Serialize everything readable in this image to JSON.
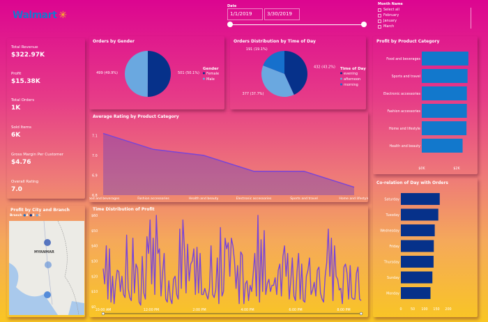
{
  "brand": {
    "name": "Walmart",
    "accent": "#1a75cf",
    "spark": "#ffc220"
  },
  "date_slicer": {
    "label": "Date",
    "start": "1/1/2019",
    "end": "3/30/2019"
  },
  "month_slicer": {
    "label": "Month Name",
    "items": [
      "Select all",
      "February",
      "January",
      "March"
    ]
  },
  "kpis": [
    {
      "label": "Total Revenue",
      "value": "$322.97K"
    },
    {
      "label": "Profit",
      "value": "$15.38K"
    },
    {
      "label": "Total Orders",
      "value": "1K"
    },
    {
      "label": "Sold Items",
      "value": "6K"
    },
    {
      "label": "Gross Margin Per Customer",
      "value": "$4.76"
    },
    {
      "label": "Overall Rating",
      "value": "7.0"
    }
  ],
  "map": {
    "title": "Profit by City and Branch",
    "legend_label": "Branch",
    "branches": [
      "A",
      "B",
      "C"
    ],
    "country_label": "MYANMAR"
  },
  "chart_data": [
    {
      "type": "pie",
      "title": "Orders by Gender",
      "legend_title": "Gender",
      "categories": [
        "Female",
        "Male"
      ],
      "values": [
        501,
        499
      ],
      "labels": [
        "501 (50.1%)",
        "499 (49.9%)"
      ],
      "colors": [
        "#06318a",
        "#6aa8e0"
      ]
    },
    {
      "type": "pie",
      "title": "Orders Distribution by Time of Day",
      "legend_title": "Time of Day",
      "categories": [
        "evening",
        "afternoon",
        "morning"
      ],
      "values": [
        432,
        377,
        191
      ],
      "labels": [
        "432 (43.2%)",
        "377 (37.7%)",
        "191 (19.1%)"
      ],
      "colors": [
        "#06318a",
        "#6aa8e0",
        "#1670cc"
      ]
    },
    {
      "type": "bar",
      "orientation": "horizontal",
      "title": "Profit by Product Category",
      "categories": [
        "Food and beverages",
        "Sports and travel",
        "Electronic accessories",
        "Fashion accessories",
        "Home and lifestyle",
        "Health and beauty"
      ],
      "values": [
        2673.56,
        2624.9,
        2587.5,
        2585.99,
        2564.85,
        2342.56
      ],
      "xticks": [
        "$0K",
        "$2K"
      ],
      "xlim": [
        0,
        2800
      ],
      "color": "#1278cc"
    },
    {
      "type": "area",
      "title": "Average Rating by Product Category",
      "categories": [
        "Food and beverages",
        "Fashion accessories",
        "Health and beauty",
        "Electronic accessories",
        "Sports and travel",
        "Home and lifestyle"
      ],
      "values": [
        7.11,
        7.03,
        7.0,
        6.92,
        6.92,
        6.84
      ],
      "yticks": [
        "6.8",
        "6.9",
        "7.0",
        "7.1"
      ],
      "ylim": [
        6.8,
        7.15
      ],
      "color": "#7a45d6"
    },
    {
      "type": "line",
      "title": "Time Distribution of Profit",
      "xticks": [
        "10:00 AM",
        "12:00 PM",
        "2:00 PM",
        "4:00 PM",
        "6:00 PM",
        "8:00 PM"
      ],
      "yticks": [
        "$0",
        "$10",
        "$20",
        "$30",
        "$40",
        "$50",
        "$60"
      ],
      "ylim": [
        0,
        60
      ],
      "color": "#7a45d6",
      "values": [
        25,
        15,
        40,
        5,
        38,
        3,
        20,
        2,
        16,
        24,
        23,
        10,
        20,
        8,
        6,
        47,
        12,
        6,
        4,
        45,
        9,
        28,
        25,
        3,
        1,
        33,
        9,
        5,
        46,
        35,
        57,
        15,
        45,
        8,
        60,
        35,
        38,
        7,
        22,
        35,
        5,
        3,
        17,
        5,
        2,
        18,
        20,
        8,
        5,
        51,
        12,
        57,
        38,
        9,
        41,
        17,
        28,
        30,
        38,
        8,
        39,
        9,
        35,
        8,
        8,
        12,
        8,
        5,
        12,
        40,
        8,
        6,
        11,
        32,
        2,
        52,
        7,
        10,
        45,
        38,
        42,
        20,
        45,
        40,
        30,
        12,
        27,
        2,
        36,
        34,
        2,
        15,
        17,
        4,
        14,
        10,
        22,
        35,
        7,
        60,
        3,
        44,
        10,
        50,
        8,
        15,
        18,
        10,
        14,
        14,
        19,
        8,
        24,
        28,
        7,
        33,
        40,
        20,
        35,
        5,
        17,
        32,
        7,
        4,
        23,
        35,
        5,
        28,
        4,
        3,
        20,
        24,
        32,
        8,
        11,
        16,
        7,
        24,
        26,
        9,
        5,
        3,
        20,
        29,
        51,
        20,
        45,
        4,
        40,
        20,
        18,
        11,
        12,
        2,
        26,
        28,
        22,
        5,
        27,
        6,
        5,
        5,
        22,
        26,
        5,
        4
      ]
    },
    {
      "type": "bar",
      "orientation": "horizontal",
      "title": "Co-relation of Day with Orders",
      "categories": [
        "Saturday",
        "Tuesday",
        "Wednesday",
        "Friday",
        "Thursday",
        "Sunday",
        "Monday"
      ],
      "values": [
        164,
        158,
        143,
        139,
        138,
        133,
        125
      ],
      "xticks": [
        "0",
        "50",
        "100",
        "150",
        "200"
      ],
      "xlim": [
        0,
        200
      ],
      "color": "#06318a"
    }
  ]
}
